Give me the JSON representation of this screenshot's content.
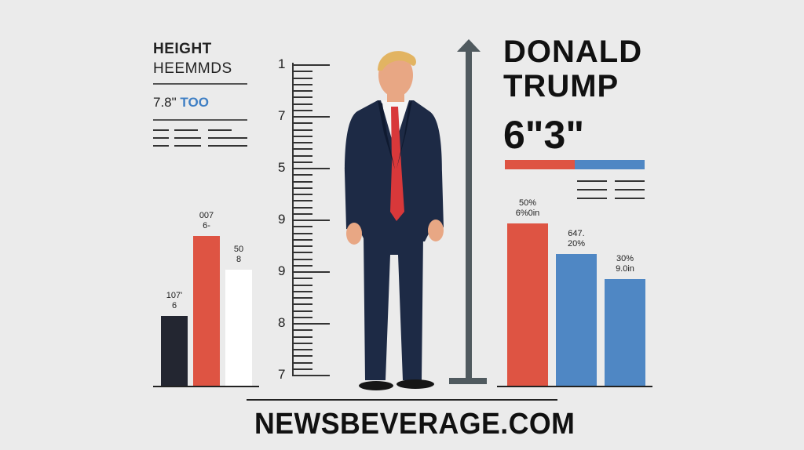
{
  "left_panel": {
    "title": "HEIGHT",
    "subtitle": "HEEMMDS",
    "stat_prefix": "7.8\"",
    "stat_accent": "TOO"
  },
  "left_bars": [
    {
      "label": "107'\n6",
      "value": 23,
      "color": "#232631"
    },
    {
      "label": "007\n6-",
      "value": 49,
      "color": "#de5443"
    },
    {
      "label": "50\n8",
      "value": 38,
      "color": "#ffffff"
    }
  ],
  "ruler": {
    "numbers": [
      "1",
      "7",
      "5",
      "9",
      "9",
      "8",
      "7"
    ]
  },
  "headline": {
    "line1": "DONALD",
    "line2": "TRUMP",
    "height": "6\"3\""
  },
  "split_bar": {
    "red_share": 0.5,
    "colors": {
      "red": "#de5443",
      "blue": "#4f87c4"
    }
  },
  "right_bars": [
    {
      "label": "50%\n6%0in",
      "value": 53,
      "color": "#de5443"
    },
    {
      "label": "647.\n20%",
      "value": 43,
      "color": "#4f87c4"
    },
    {
      "label": "30%\n9.0in",
      "value": 35,
      "color": "#4f87c4"
    }
  ],
  "site": "NEWSBEVERAGE.COM",
  "person": {
    "suit": "#1d2a45",
    "tie": "#d8383a",
    "hair": "#e2b462",
    "skin": "#e8a784"
  }
}
